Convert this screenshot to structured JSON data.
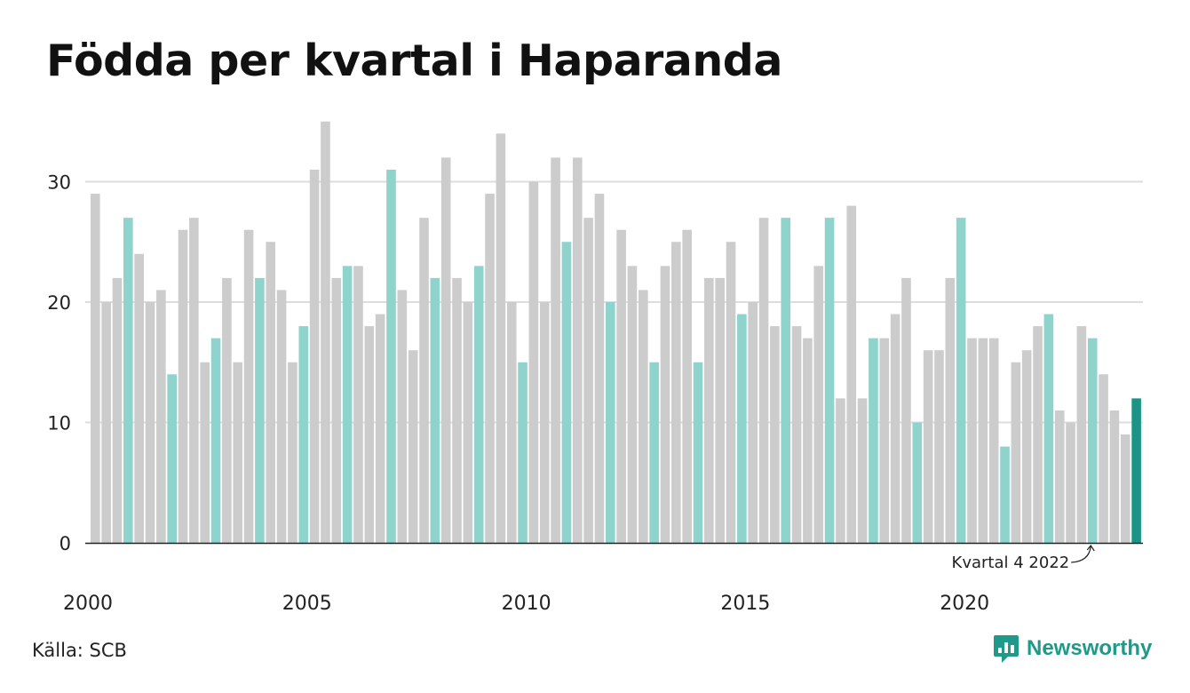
{
  "title": "Födda per kvartal i Haparanda",
  "source": "Källa: SCB",
  "brand": {
    "name": "Newsworthy",
    "icon": "newsworthy-logo-icon",
    "color": "#1f9a88"
  },
  "colors": {
    "bar_default": "#cccccc",
    "bar_q4": "#8ed3cc",
    "bar_latest": "#1c9485",
    "grid": "#dddddd",
    "axis": "#222222"
  },
  "chart_data": {
    "type": "bar",
    "title": "Födda per kvartal i Haparanda",
    "xlabel": "",
    "ylabel": "",
    "ylim": [
      0,
      35
    ],
    "yticks": [
      0,
      10,
      20,
      30
    ],
    "xtick_labels": [
      "2000",
      "2005",
      "2010",
      "2015",
      "2020"
    ],
    "grid": true,
    "start": {
      "year": 2000,
      "quarter": 1
    },
    "highlight_quarter": 4,
    "values": [
      29,
      20,
      22,
      27,
      24,
      20,
      21,
      14,
      26,
      27,
      15,
      17,
      22,
      15,
      26,
      22,
      25,
      21,
      15,
      18,
      31,
      35,
      22,
      23,
      23,
      18,
      19,
      31,
      21,
      16,
      27,
      22,
      32,
      22,
      20,
      23,
      29,
      34,
      20,
      15,
      30,
      20,
      32,
      25,
      32,
      27,
      29,
      20,
      26,
      23,
      21,
      15,
      23,
      25,
      26,
      15,
      22,
      22,
      25,
      19,
      20,
      27,
      18,
      27,
      18,
      17,
      23,
      27,
      12,
      28,
      12,
      17,
      17,
      19,
      22,
      10,
      16,
      16,
      22,
      27,
      17,
      17,
      17,
      8,
      15,
      16,
      18,
      19,
      11,
      10,
      18,
      17,
      14,
      11,
      9,
      12
    ],
    "annotation": {
      "text": "Kvartal 4 2022"
    }
  }
}
